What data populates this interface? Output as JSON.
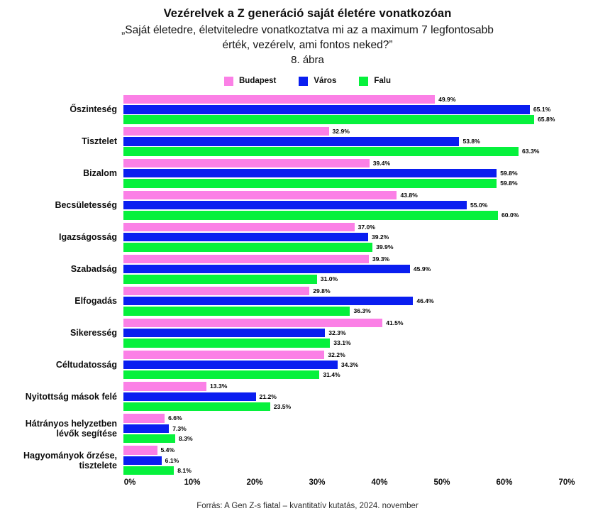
{
  "header": {
    "title": "Vezérelvek a Z generáció saját életére vonatkozóan",
    "subtitle_line1": "„Saját életedre, életviteledre vonatkoztatva mi az a maximum 7 legfontosabb",
    "subtitle_line2": "érték, vezérelv, ami fontos neked?”",
    "figure_label": "8. ábra"
  },
  "chart_data": {
    "type": "bar",
    "orientation": "horizontal",
    "title": "Vezérelvek a Z generáció saját életére vonatkozóan",
    "categories": [
      "Őszinteség",
      "Tisztelet",
      "Bizalom",
      "Becsületesség",
      "Igazságosság",
      "Szabadság",
      "Elfogadás",
      "Sikeresség",
      "Céltudatosság",
      "Nyitottság mások felé",
      "Hátrányos helyzetben\nlévők segítése",
      "Hagyományok őrzése,\ntisztelete"
    ],
    "series": [
      {
        "name": "Budapest",
        "color": "#fb80e6",
        "values": [
          49.9,
          32.9,
          39.4,
          43.8,
          37.0,
          39.3,
          29.8,
          41.5,
          32.2,
          13.3,
          6.6,
          5.4
        ]
      },
      {
        "name": "Város",
        "color": "#0a1ef0",
        "values": [
          65.1,
          53.8,
          59.8,
          55.0,
          39.2,
          45.9,
          46.4,
          32.3,
          34.3,
          21.2,
          7.3,
          6.1
        ]
      },
      {
        "name": "Falu",
        "color": "#06f13c",
        "values": [
          65.8,
          63.3,
          59.8,
          60.0,
          39.9,
          31.0,
          36.3,
          33.1,
          31.4,
          23.5,
          8.3,
          8.1
        ]
      }
    ],
    "value_suffix": "%",
    "value_decimals": 1,
    "xlim": [
      0,
      70
    ],
    "x_ticks": [
      "0%",
      "10%",
      "20%",
      "30%",
      "40%",
      "50%",
      "60%",
      "70%"
    ],
    "legend_position": "top",
    "grid": false,
    "background": "#ffffff"
  },
  "footer": {
    "source": "Forrás: A Gen Z-s fiatal – kvantitatív kutatás, 2024. november"
  }
}
